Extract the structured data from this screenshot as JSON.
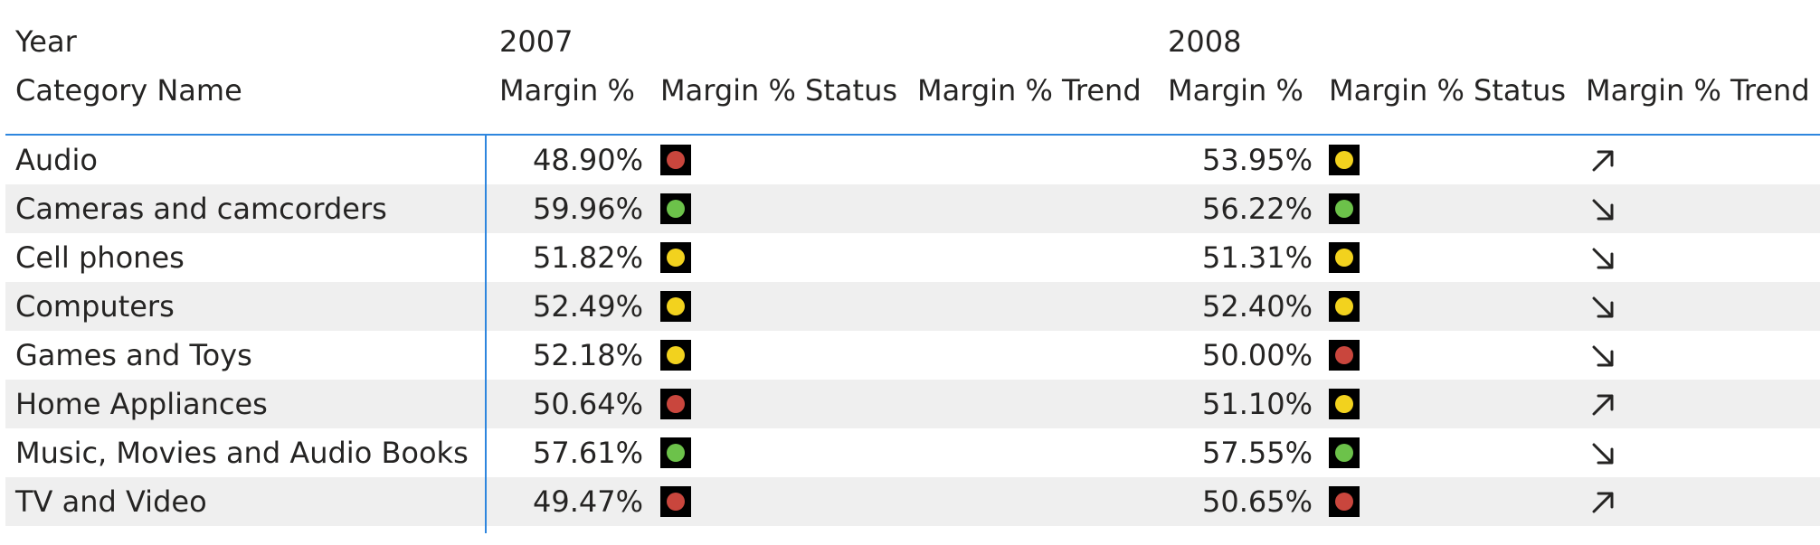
{
  "header": {
    "year_label": "Year",
    "category_label": "Category Name",
    "years": [
      {
        "year": "2007",
        "cols": [
          "Margin %",
          "Margin % Status",
          "Margin % Trend"
        ]
      },
      {
        "year": "2008",
        "cols": [
          "Margin %",
          "Margin % Status",
          "Margin % Trend"
        ]
      }
    ]
  },
  "colors": {
    "red": "#c9463d",
    "yellow": "#f2d21e",
    "green": "#6cc24a",
    "accent": "#2e86de"
  },
  "rows": [
    {
      "name": "Audio",
      "m2007": "48.90%",
      "s2007": "red",
      "m2008": "53.95%",
      "s2008": "yellow",
      "t2008": "up"
    },
    {
      "name": "Cameras and camcorders",
      "m2007": "59.96%",
      "s2007": "green",
      "m2008": "56.22%",
      "s2008": "green",
      "t2008": "down"
    },
    {
      "name": "Cell phones",
      "m2007": "51.82%",
      "s2007": "yellow",
      "m2008": "51.31%",
      "s2008": "yellow",
      "t2008": "down"
    },
    {
      "name": "Computers",
      "m2007": "52.49%",
      "s2007": "yellow",
      "m2008": "52.40%",
      "s2008": "yellow",
      "t2008": "down"
    },
    {
      "name": "Games and Toys",
      "m2007": "52.18%",
      "s2007": "yellow",
      "m2008": "50.00%",
      "s2008": "red",
      "t2008": "down"
    },
    {
      "name": "Home Appliances",
      "m2007": "50.64%",
      "s2007": "red",
      "m2008": "51.10%",
      "s2008": "yellow",
      "t2008": "up"
    },
    {
      "name": "Music, Movies and Audio Books",
      "m2007": "57.61%",
      "s2007": "green",
      "m2008": "57.55%",
      "s2008": "green",
      "t2008": "down"
    },
    {
      "name": "TV and Video",
      "m2007": "49.47%",
      "s2007": "red",
      "m2008": "50.65%",
      "s2008": "red",
      "t2008": "up"
    }
  ]
}
